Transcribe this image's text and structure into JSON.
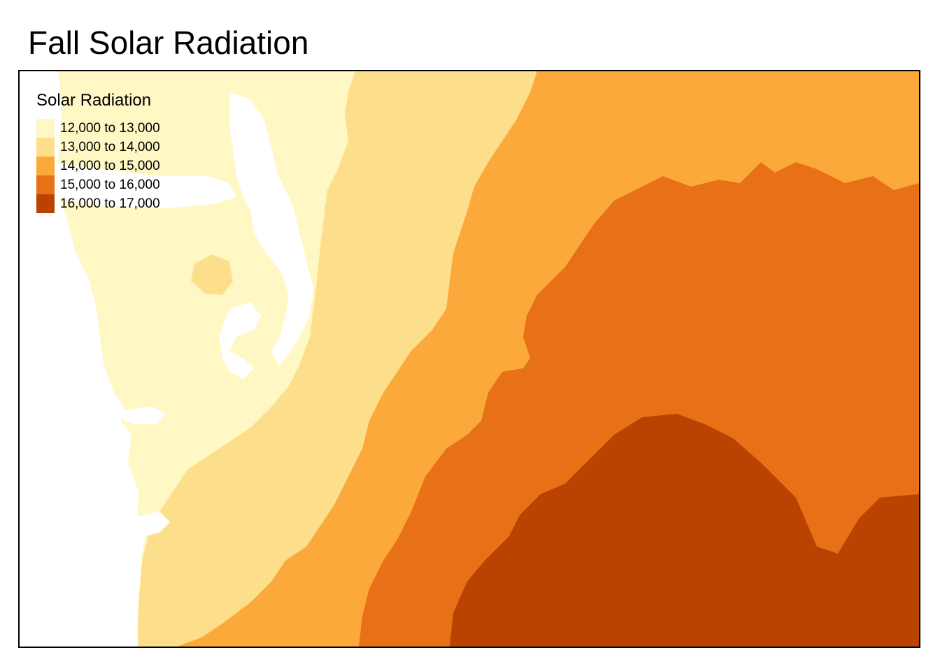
{
  "title": "Fall Solar Radiation",
  "legend": {
    "title": "Solar Radiation",
    "items": [
      {
        "label": "12,000 to 13,000",
        "color": "#FFF7C4"
      },
      {
        "label": "13,000 to 14,000",
        "color": "#FDDF8B"
      },
      {
        "label": "14,000 to 15,000",
        "color": "#FBA93A"
      },
      {
        "label": "15,000 to 16,000",
        "color": "#E87016"
      },
      {
        "label": "16,000 to 17,000",
        "color": "#BA4302"
      }
    ]
  },
  "map": {
    "background_color": "#FFFFFF",
    "water_color": "#FFFFFF"
  }
}
